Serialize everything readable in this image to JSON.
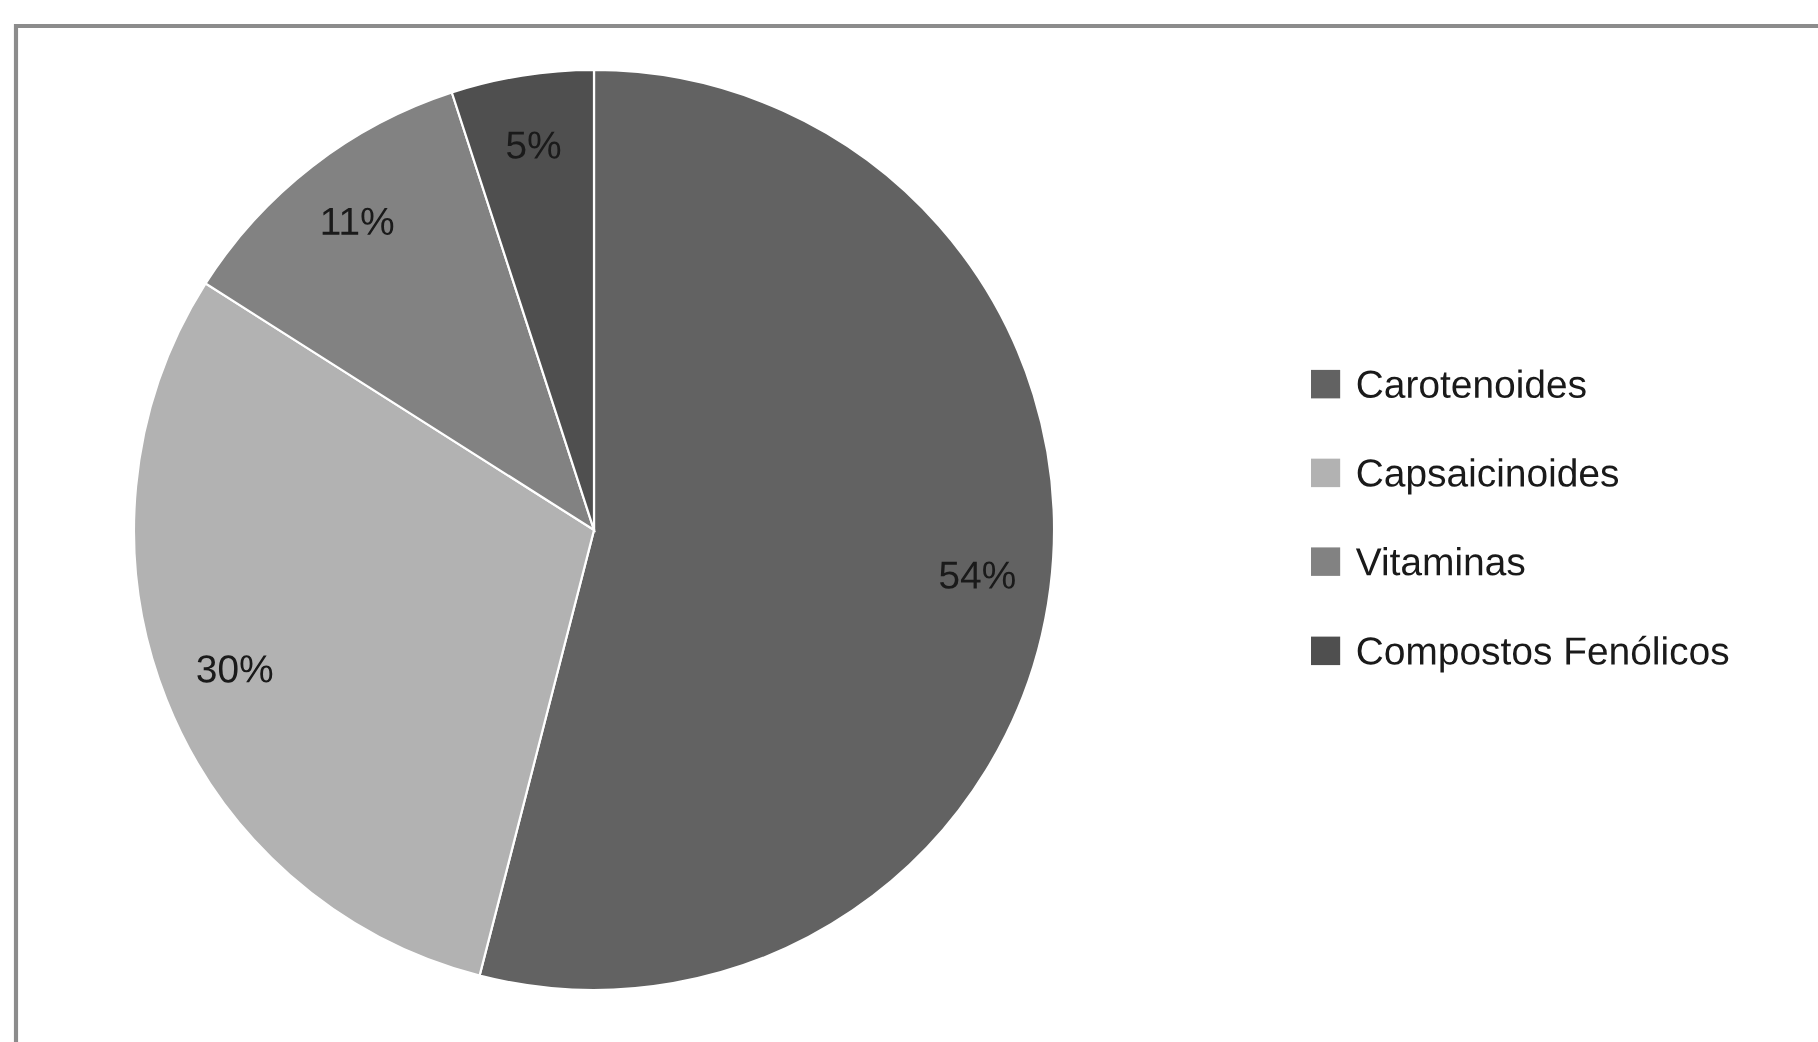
{
  "chart_data": {
    "type": "pie",
    "categories": [
      "Carotenoides",
      "Capsaicinoides",
      "Vitaminas",
      "Compostos Fenólicos"
    ],
    "values": [
      54,
      30,
      11,
      5
    ],
    "colors": [
      "#626262",
      "#b2b2b2",
      "#828282",
      "#4f4f4f"
    ],
    "value_labels": [
      "54%",
      "30%",
      "11%",
      "5%"
    ],
    "legend": "right"
  }
}
